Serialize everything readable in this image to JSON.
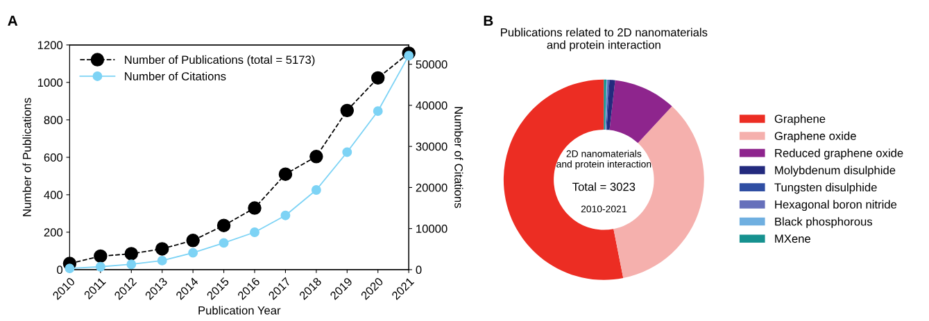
{
  "chart_data": [
    {
      "type": "line",
      "annotations": [
        "A"
      ],
      "xlabel": "Publication Year",
      "ylabel": "Number of Publications",
      "y2label": "Number of Citations",
      "categories": [
        "2010",
        "2011",
        "2012",
        "2013",
        "2014",
        "2015",
        "2016",
        "2017",
        "2018",
        "2019",
        "2020",
        "2021"
      ],
      "series": [
        {
          "name": "Number of Publications (total = 5173)",
          "color": "#000000",
          "line_style": "dashed",
          "values": [
            33,
            72,
            85,
            111,
            156,
            236,
            329,
            510,
            604,
            850,
            1024,
            1156
          ]
        },
        {
          "name": "Number of Citations",
          "color": "#7dd3f5",
          "line_style": "solid",
          "axis": "y2",
          "values": [
            300,
            700,
            1300,
            2200,
            4100,
            6500,
            9100,
            13200,
            19400,
            28600,
            38600,
            52100
          ]
        }
      ],
      "ylim": [
        0,
        1200
      ],
      "yticks": [
        0,
        200,
        400,
        600,
        800,
        1000,
        1200
      ],
      "y2lim": [
        0,
        54700
      ],
      "y2ticks": [
        0,
        10000,
        20000,
        30000,
        40000,
        50000
      ],
      "marker": "circle",
      "legend": "top left",
      "grid": false
    },
    {
      "type": "donut",
      "title": "Publications related to 2D nanomaterials\nand protein interaction",
      "annotations": [
        "B",
        "2D nanomaterials\nand protein interaction",
        "Total = 3023",
        "2010-2021"
      ],
      "categories": [
        "Graphene",
        "Graphene oxide",
        "Reduced graphene oxide",
        "Molybdenum disulphide",
        "Tungsten disulphide",
        "Hexagonal boron nitride",
        "Black phosphorous",
        "MXene"
      ],
      "values": [
        53.1,
        35.0,
        10.1,
        0.9,
        0.2,
        0.2,
        0.1,
        0.4
      ],
      "colors": [
        "#ec2d23",
        "#f5b0ad",
        "#8e258d",
        "#232a7e",
        "#2f4ea3",
        "#6670bb",
        "#6fafe0",
        "#16918f"
      ],
      "legend": "right"
    }
  ]
}
